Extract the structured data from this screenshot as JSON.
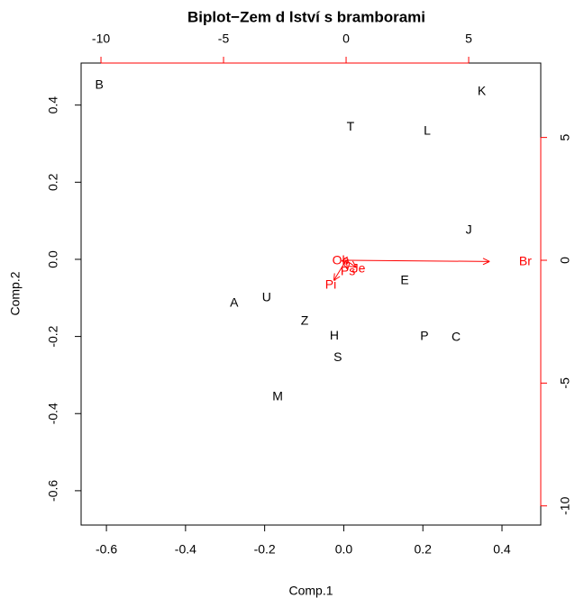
{
  "chart_data": {
    "type": "biplot",
    "title": "Biplot−Zem d lství s bramborami",
    "xlabel": "Comp.1",
    "ylabel": "Comp.2",
    "xlim": [
      -0.664,
      0.498
    ],
    "ylim": [
      -0.689,
      0.509
    ],
    "xticks": [
      -0.6,
      -0.4,
      -0.2,
      {
        "value": 0,
        "label": "0.0"
      },
      0.2,
      0.4
    ],
    "yticks": [
      -0.6,
      -0.4,
      -0.2,
      {
        "value": 0,
        "label": "0.0"
      },
      0.2,
      0.4
    ],
    "x2lim": [
      -10.81,
      7.94
    ],
    "y2lim": [
      -10.78,
      8.03
    ],
    "x2ticks": [
      -10,
      -5,
      0,
      5
    ],
    "y2ticks": [
      -10,
      -5,
      0,
      5
    ],
    "points": {
      "color": "#000000",
      "labels": [
        "B",
        "K",
        "T",
        "L",
        "J",
        "E",
        "A",
        "U",
        "Z",
        "H",
        "S",
        "P",
        "C",
        "M"
      ],
      "x": [
        -0.618,
        0.349,
        0.017,
        0.211,
        0.316,
        0.154,
        -0.277,
        -0.195,
        -0.099,
        -0.024,
        -0.015,
        0.204,
        0.284,
        -0.167
      ],
      "y": [
        0.451,
        0.435,
        0.343,
        0.332,
        0.075,
        -0.056,
        -0.114,
        -0.1,
        -0.161,
        -0.199,
        -0.255,
        -0.201,
        -0.203,
        -0.357
      ]
    },
    "loadings": {
      "color": "#ff0000",
      "labels": [
        "Br",
        "Pi",
        "Ps",
        "Je",
        "Ob"
      ],
      "x": [
        5.85,
        -0.5,
        0.06,
        0.41,
        -0.18
      ],
      "y": [
        -0.05,
        -0.82,
        -0.38,
        -0.29,
        -0.03
      ]
    }
  }
}
